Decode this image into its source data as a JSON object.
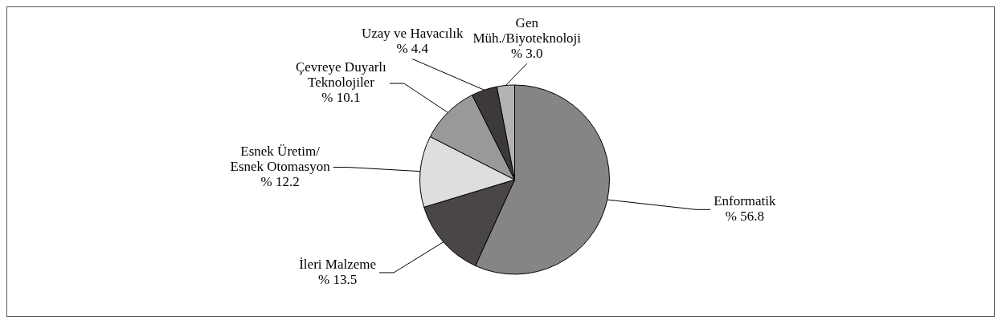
{
  "chart_data": {
    "type": "pie",
    "categories": [
      "Enformatik",
      "İleri Malzeme",
      "Esnek Üretim/\nEsnek Otomasyon",
      "Çevreye Duyarlı\nTeknolojiler",
      "Uzay ve Havacılık",
      "Gen\nMüh./Biyoteknoloji"
    ],
    "values": [
      56.8,
      13.5,
      12.2,
      10.1,
      4.4,
      3.0
    ],
    "colors": [
      "#858585",
      "#4a4646",
      "#dedede",
      "#999999",
      "#3d3939",
      "#b3b3b3"
    ],
    "value_labels": [
      "% 56.8",
      "% 13.5",
      "% 12.2",
      "% 10.1",
      "% 4.4",
      "% 3.0"
    ]
  }
}
